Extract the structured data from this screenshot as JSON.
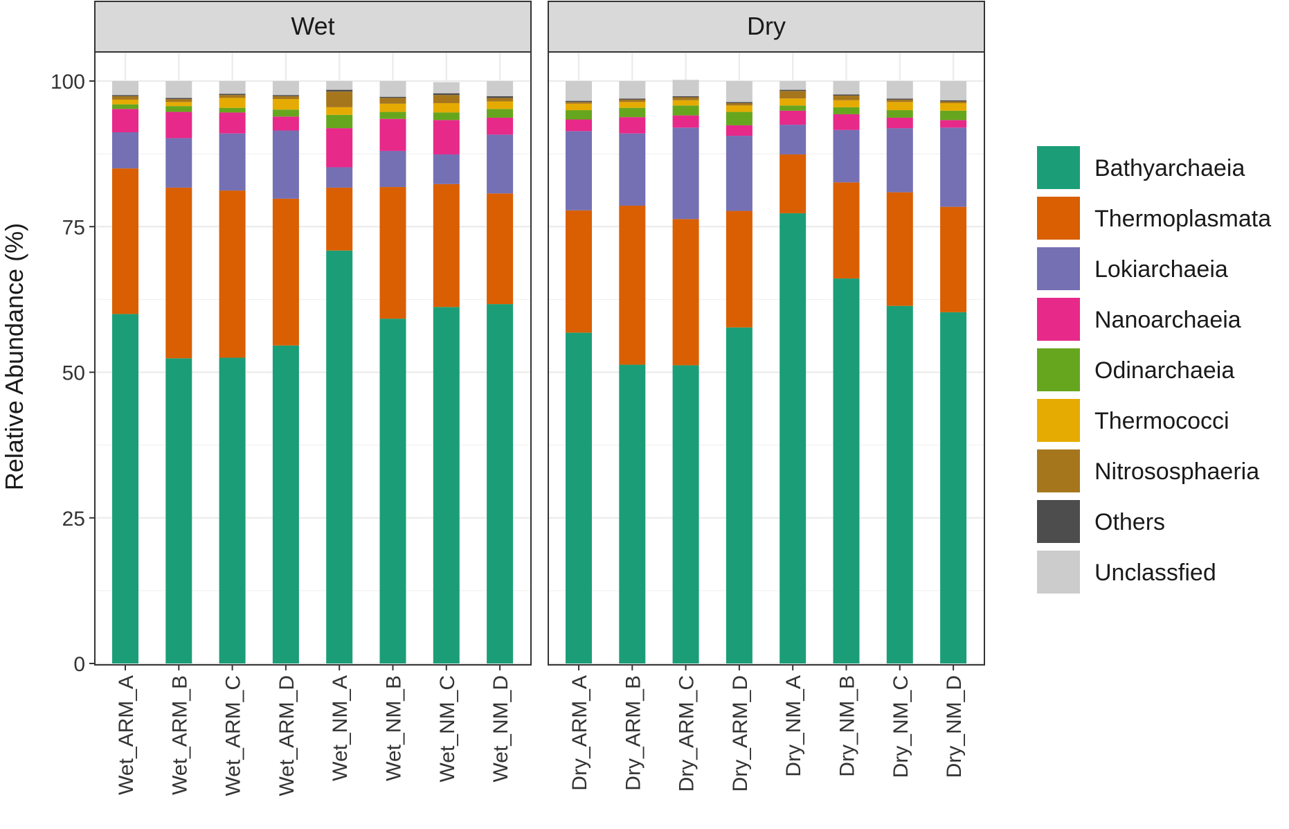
{
  "chart_data": {
    "type": "bar",
    "stacked": true,
    "ylabel": "Relative Abundance (%)",
    "xlabel": "",
    "ylim": [
      0,
      100
    ],
    "yticks": [
      0,
      25,
      50,
      75,
      100
    ],
    "grid": true,
    "legend_position": "right",
    "taxa": [
      "Bathyarchaeia",
      "Thermoplasmata",
      "Lokiarchaeia",
      "Nanoarchaeia",
      "Odinarchaeia",
      "Thermococci",
      "Nitrososphaeria",
      "Others",
      "Unclassfied"
    ],
    "colors": [
      "#1b9e77",
      "#d95f02",
      "#7570b3",
      "#e7298a",
      "#66a61e",
      "#e6ab02",
      "#a6761d",
      "#4d4d4d",
      "#cccccc"
    ],
    "panels": [
      {
        "title": "Wet",
        "categories": [
          "Wet_ARM_A",
          "Wet_ARM_B",
          "Wet_ARM_C",
          "Wet_ARM_D",
          "Wet_NM_A",
          "Wet_NM_B",
          "Wet_NM_C",
          "Wet_NM_D"
        ],
        "series": [
          {
            "name": "Bathyarchaeia",
            "values": [
              60.0,
              52.4,
              52.5,
              54.6,
              70.9,
              59.2,
              61.2,
              61.7
            ]
          },
          {
            "name": "Thermoplasmata",
            "values": [
              25.0,
              29.3,
              28.7,
              25.2,
              10.8,
              22.6,
              21.1,
              19.0
            ]
          },
          {
            "name": "Lokiarchaeia",
            "values": [
              6.2,
              8.5,
              9.8,
              11.7,
              3.5,
              6.2,
              5.1,
              10.1
            ]
          },
          {
            "name": "Nanoarchaeia",
            "values": [
              4.0,
              4.5,
              3.6,
              2.4,
              6.7,
              5.5,
              5.9,
              2.9
            ]
          },
          {
            "name": "Odinarchaeia",
            "values": [
              0.8,
              1.0,
              0.8,
              1.2,
              2.3,
              1.2,
              1.3,
              1.5
            ]
          },
          {
            "name": "Thermococci",
            "values": [
              0.8,
              0.7,
              1.7,
              1.8,
              1.3,
              1.4,
              1.6,
              1.3
            ]
          },
          {
            "name": "Nitrososphaeria",
            "values": [
              0.6,
              0.5,
              0.5,
              0.5,
              2.7,
              1.0,
              1.4,
              0.6
            ]
          },
          {
            "name": "Others",
            "values": [
              0.2,
              0.2,
              0.2,
              0.2,
              0.3,
              0.2,
              0.3,
              0.3
            ]
          },
          {
            "name": "Unclassfied",
            "values": [
              2.4,
              2.9,
              2.2,
              2.4,
              1.5,
              2.7,
              1.9,
              2.6
            ]
          }
        ]
      },
      {
        "title": "Dry",
        "categories": [
          "Dry_ARM_A",
          "Dry_ARM_B",
          "Dry_ARM_C",
          "Dry_ARM_D",
          "Dry_NM_A",
          "Dry_NM_B",
          "Dry_NM_C",
          "Dry_NM_D"
        ],
        "series": [
          {
            "name": "Bathyarchaeia",
            "values": [
              56.8,
              51.3,
              51.2,
              57.7,
              77.3,
              66.1,
              61.4,
              60.3
            ]
          },
          {
            "name": "Thermoplasmata",
            "values": [
              21.0,
              27.3,
              25.1,
              20.0,
              10.1,
              16.5,
              19.5,
              18.1
            ]
          },
          {
            "name": "Lokiarchaeia",
            "values": [
              13.6,
              12.4,
              15.7,
              12.9,
              5.1,
              9.0,
              11.0,
              13.6
            ]
          },
          {
            "name": "Nanoarchaeia",
            "values": [
              2.0,
              2.8,
              2.1,
              1.8,
              2.4,
              2.7,
              1.8,
              1.3
            ]
          },
          {
            "name": "Odinarchaeia",
            "values": [
              1.6,
              1.6,
              1.7,
              2.3,
              0.9,
              1.2,
              1.3,
              1.6
            ]
          },
          {
            "name": "Thermococci",
            "values": [
              1.1,
              1.0,
              0.9,
              1.1,
              1.2,
              1.2,
              1.4,
              1.3
            ]
          },
          {
            "name": "Nitrososphaeria",
            "values": [
              0.3,
              0.4,
              0.5,
              0.4,
              1.3,
              0.8,
              0.4,
              0.3
            ]
          },
          {
            "name": "Others",
            "values": [
              0.2,
              0.2,
              0.2,
              0.2,
              0.2,
              0.2,
              0.2,
              0.2
            ]
          },
          {
            "name": "Unclassfied",
            "values": [
              3.4,
              3.0,
              2.8,
              3.6,
              1.5,
              2.3,
              3.0,
              3.3
            ]
          }
        ]
      }
    ]
  }
}
